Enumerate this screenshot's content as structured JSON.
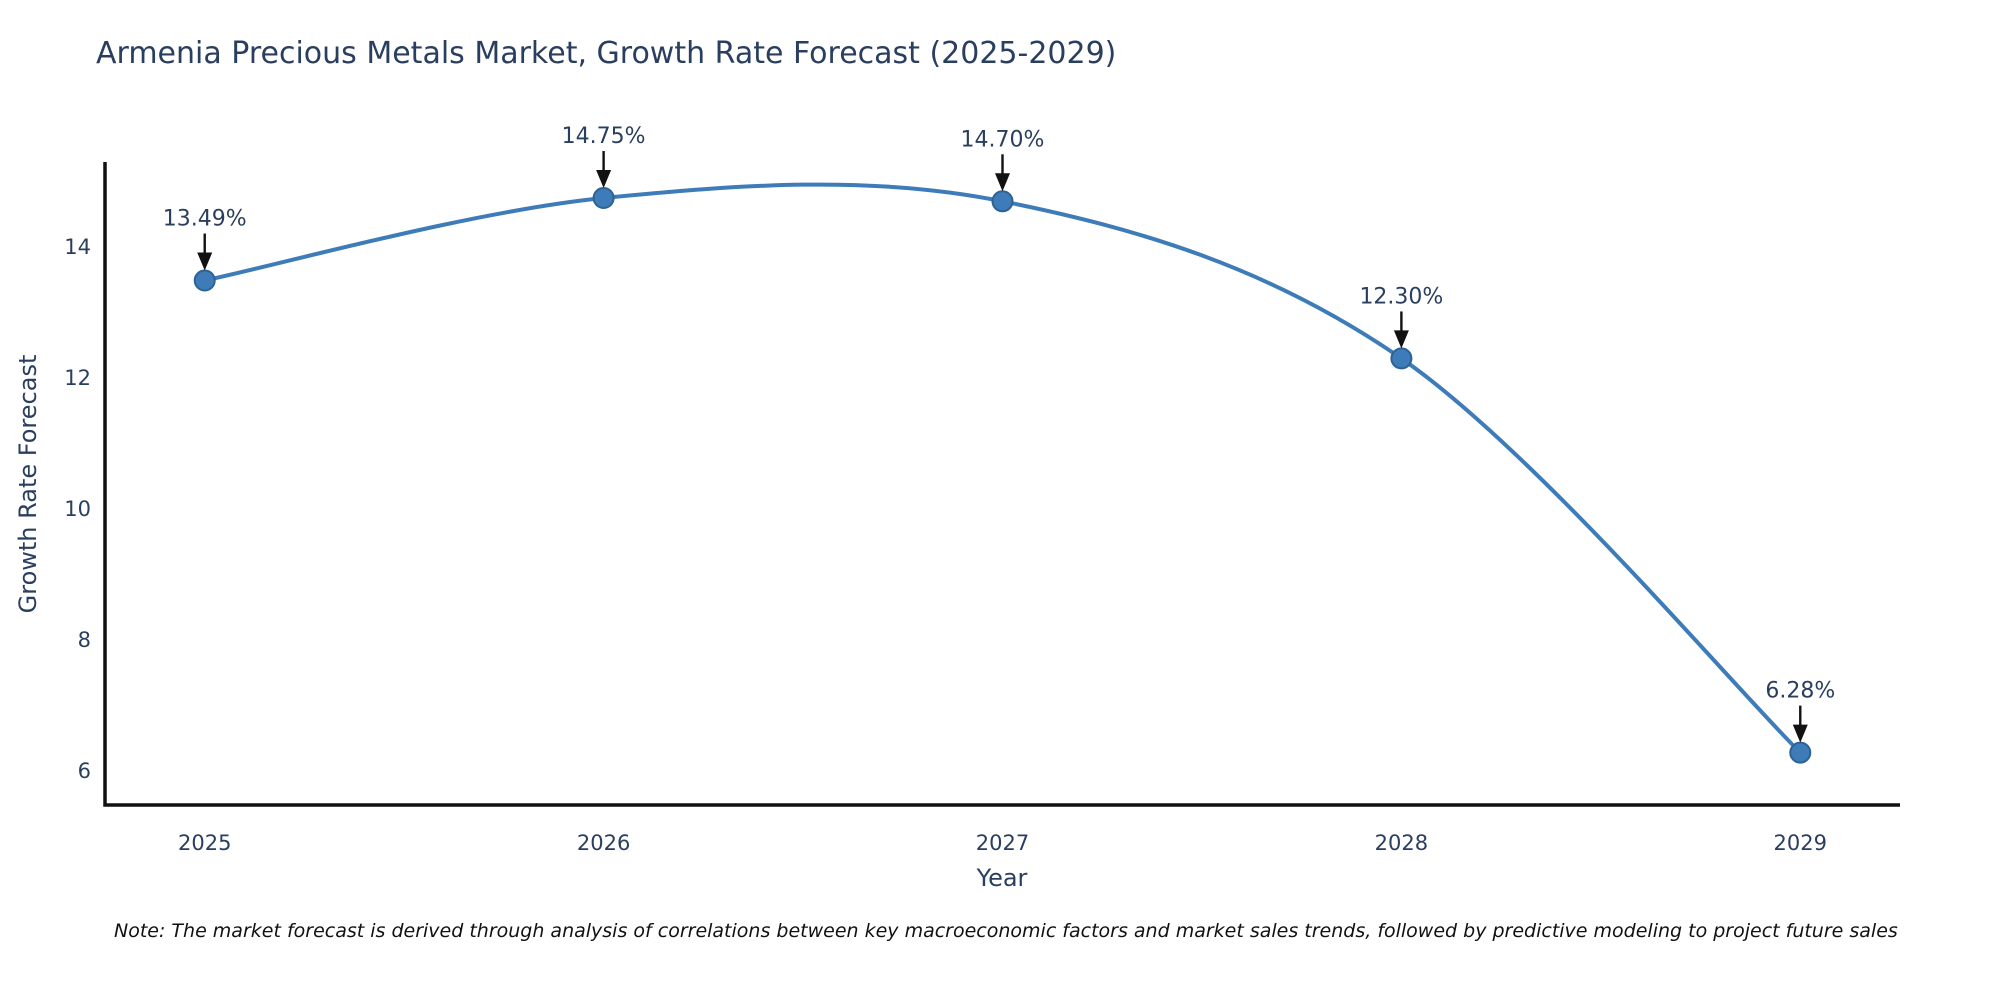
{
  "chart_data": {
    "type": "line",
    "title": "Armenia Precious Metals Market, Growth Rate Forecast (2025-2029)",
    "xlabel": "Year",
    "ylabel": "Growth Rate Forecast",
    "x": [
      2025,
      2026,
      2027,
      2028,
      2029
    ],
    "y": [
      13.49,
      14.75,
      14.7,
      12.3,
      6.28
    ],
    "point_labels": [
      "13.49%",
      "14.75%",
      "14.70%",
      "12.30%",
      "6.28%"
    ],
    "yticks": [
      6,
      8,
      10,
      12,
      14
    ],
    "xlim": [
      2024.75,
      2029.25
    ],
    "ylim": [
      5.48,
      15.3
    ],
    "line_shape": "spline",
    "grid": false,
    "legend": "none",
    "line_color": "#3d7cb8",
    "marker_color": "#3d7cb8",
    "marker_edge_color": "#2d6295",
    "axis_color": "#111111",
    "text_color": "#2a3f5f",
    "arrow_color": "#111111",
    "note": "Note: The market forecast is derived through analysis of correlations between key macroeconomic factors and market sales trends, followed by predictive modeling to project future sales"
  }
}
